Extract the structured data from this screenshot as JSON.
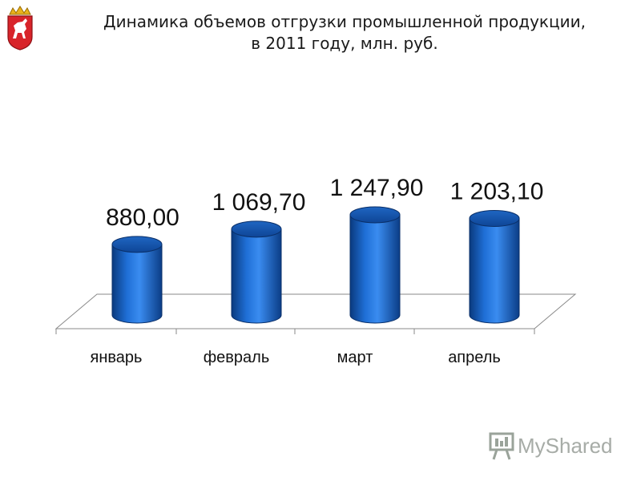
{
  "header": {
    "title_line1": "Динамика объемов отгрузки промышленной продукции,",
    "title_line2": "в 2011 году, млн. руб."
  },
  "watermark": {
    "text": "MyShared",
    "icon": "presentation-screen-icon"
  },
  "emblem": {
    "icon": "coat-of-arms-horse-icon"
  },
  "chart_data": {
    "type": "bar",
    "style": "3d-cylinder",
    "title": "Динамика объемов отгрузки промышленной продукции, в 2011 году, млн. руб.",
    "categories": [
      "январь",
      "февраль",
      "март",
      "апрель"
    ],
    "values": [
      880.0,
      1069.7,
      1247.9,
      1203.1
    ],
    "data_labels": [
      "880,00",
      "1 069,70",
      "1 247,90",
      "1 203,10"
    ],
    "xlabel": "",
    "ylabel": "",
    "ylim": [
      0,
      1400
    ],
    "grid": false,
    "legend": "none",
    "bar_color": "#1565c8"
  }
}
